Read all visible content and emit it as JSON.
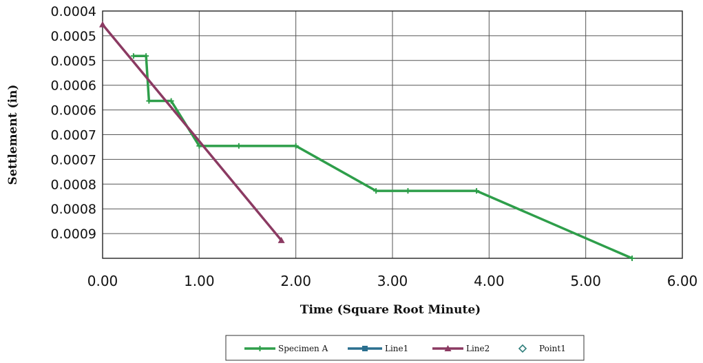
{
  "chart_data": {
    "type": "line",
    "title": "",
    "xlabel": "Time (Square Root Minute)",
    "ylabel": "Settlement (in)",
    "xlim": [
      0,
      6
    ],
    "ylim": [
      0.0004,
      0.00095
    ],
    "y_inverted": true,
    "grid": true,
    "legend_position": "bottom-center",
    "x_tick_labels": [
      "0.00",
      "1.00",
      "2.00",
      "3.00",
      "4.00",
      "5.00",
      "6.00"
    ],
    "y_tick_labels": [
      "0.0004",
      "0.0005",
      "0.0005",
      "0.0006",
      "0.0006",
      "0.0007",
      "0.0007",
      "0.0008",
      "0.0008",
      "0.0009"
    ],
    "series": [
      {
        "name": "Specimen A",
        "color": "#2e9e4a",
        "marker": "plus",
        "points": [
          [
            0.32,
            0.0005
          ],
          [
            0.45,
            0.0005
          ],
          [
            0.48,
            0.0006
          ],
          [
            0.71,
            0.0006
          ],
          [
            1.0,
            0.0007
          ],
          [
            1.41,
            0.0007
          ],
          [
            2.0,
            0.0007
          ],
          [
            2.83,
            0.0008
          ],
          [
            3.16,
            0.0008
          ],
          [
            3.87,
            0.0008
          ],
          [
            5.48,
            0.00095
          ]
        ]
      },
      {
        "name": "Line1",
        "color": "#2a6f8f",
        "marker": "square",
        "points": []
      },
      {
        "name": "Line2",
        "color": "#8b3a62",
        "marker": "triangle",
        "points": [
          [
            0.0,
            0.00043
          ],
          [
            1.85,
            0.00091
          ]
        ]
      },
      {
        "name": "Point1",
        "color": "#2e7d7a",
        "marker": "diamond",
        "points": []
      }
    ]
  }
}
